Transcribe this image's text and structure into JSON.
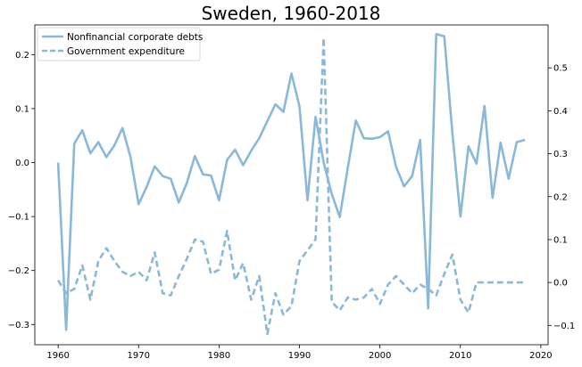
{
  "chart_data": {
    "type": "line",
    "title": "Sweden, 1960-2018",
    "xlabel": "",
    "ylabel": "",
    "legend_position": "top-left",
    "grid": false,
    "line_color": "#8ab8d8",
    "x_axis": {
      "min": 1957.1,
      "max": 2020.9,
      "ticks": [
        1960,
        1970,
        1980,
        1990,
        2000,
        2010,
        2020
      ]
    },
    "y_left": {
      "min": -0.3375,
      "max": 0.255,
      "ticks": [
        -0.3,
        -0.2,
        -0.1,
        0.0,
        0.1,
        0.2
      ],
      "tick_labels": [
        "−0.3",
        "−0.2",
        "−0.1",
        "0.0",
        "0.1",
        "0.2"
      ]
    },
    "y_right": {
      "min": -0.145,
      "max": 0.6,
      "ticks": [
        -0.1,
        0.0,
        0.1,
        0.2,
        0.3,
        0.4,
        0.5
      ],
      "tick_labels": [
        "−0.1",
        "0.0",
        "0.1",
        "0.2",
        "0.3",
        "0.4",
        "0.5"
      ]
    },
    "series": [
      {
        "name": "Nonfinancial corporate debts",
        "axis": "left",
        "style": "solid",
        "x": [
          1960,
          1961,
          1962,
          1963,
          1964,
          1965,
          1966,
          1967,
          1968,
          1969,
          1970,
          1971,
          1972,
          1973,
          1974,
          1975,
          1976,
          1977,
          1978,
          1979,
          1980,
          1981,
          1982,
          1983,
          1984,
          1985,
          1986,
          1987,
          1988,
          1989,
          1990,
          1991,
          1992,
          1993,
          1994,
          1995,
          1996,
          1997,
          1998,
          1999,
          2000,
          2001,
          2002,
          2003,
          2004,
          2005,
          2006,
          2007,
          2008,
          2009,
          2010,
          2011,
          2012,
          2013,
          2014,
          2015,
          2016,
          2017,
          2018
        ],
        "values": [
          0.0,
          -0.31,
          0.035,
          0.06,
          0.017,
          0.038,
          0.01,
          0.032,
          0.064,
          0.01,
          -0.077,
          -0.045,
          -0.007,
          -0.025,
          -0.03,
          -0.074,
          -0.038,
          0.012,
          -0.022,
          -0.024,
          -0.07,
          0.005,
          0.024,
          -0.005,
          0.022,
          0.045,
          0.077,
          0.108,
          0.094,
          0.165,
          0.104,
          -0.07,
          0.085,
          0.0,
          -0.058,
          -0.101,
          -0.01,
          0.078,
          0.045,
          0.044,
          0.047,
          0.058,
          -0.008,
          -0.044,
          -0.025,
          0.042,
          -0.27,
          0.238,
          0.234,
          0.055,
          -0.1,
          0.03,
          -0.002,
          0.105,
          -0.065,
          0.037,
          -0.03,
          0.038,
          0.042
        ]
      },
      {
        "name": "Government expenditure",
        "axis": "right",
        "style": "dashed",
        "x": [
          1960,
          1961,
          1962,
          1963,
          1964,
          1965,
          1966,
          1967,
          1968,
          1969,
          1970,
          1971,
          1972,
          1973,
          1974,
          1975,
          1976,
          1977,
          1978,
          1979,
          1980,
          1981,
          1982,
          1983,
          1984,
          1985,
          1986,
          1987,
          1988,
          1989,
          1990,
          1991,
          1992,
          1993,
          1994,
          1995,
          1996,
          1997,
          1998,
          1999,
          2000,
          2001,
          2002,
          2003,
          2004,
          2005,
          2006,
          2007,
          2008,
          2009,
          2010,
          2011,
          2012,
          2013,
          2014,
          2015,
          2016,
          2017,
          2018
        ],
        "values": [
          0.005,
          -0.025,
          -0.015,
          0.04,
          -0.04,
          0.05,
          0.08,
          0.05,
          0.025,
          0.015,
          0.025,
          0.005,
          0.07,
          -0.025,
          -0.03,
          0.015,
          0.055,
          0.1,
          0.095,
          0.02,
          0.03,
          0.12,
          0.005,
          0.045,
          -0.04,
          0.015,
          -0.12,
          -0.025,
          -0.075,
          -0.055,
          0.05,
          0.075,
          0.1,
          0.57,
          -0.045,
          -0.065,
          -0.035,
          -0.04,
          -0.035,
          -0.015,
          -0.05,
          -0.005,
          0.015,
          -0.005,
          -0.025,
          -0.005,
          -0.015,
          -0.03,
          0.02,
          0.065,
          -0.04,
          -0.07,
          0.0,
          0.0,
          0.0,
          0.0,
          0.0,
          0.0,
          0.0
        ]
      }
    ]
  }
}
